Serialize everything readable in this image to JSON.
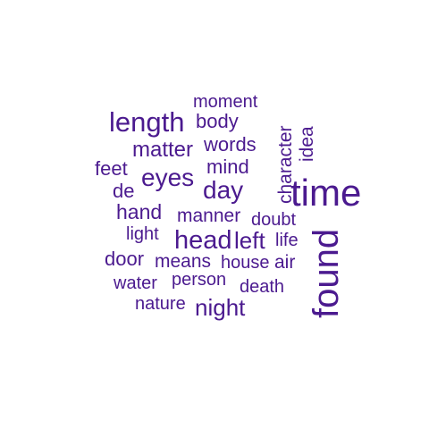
{
  "word_cloud": {
    "color": "#4b1a8f",
    "words": [
      "time",
      "found",
      "length",
      "eyes",
      "day",
      "head",
      "left",
      "night",
      "matter",
      "mind",
      "hand",
      "moment",
      "body",
      "words",
      "character",
      "idea",
      "feet",
      "de",
      "manner",
      "doubt",
      "light",
      "life",
      "door",
      "means",
      "house",
      "air",
      "water",
      "person",
      "death",
      "nature"
    ]
  }
}
